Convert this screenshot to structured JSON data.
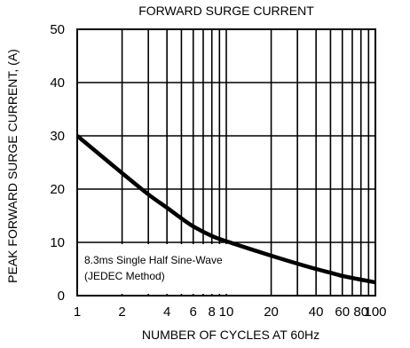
{
  "chart_data": {
    "type": "line",
    "title": "FORWARD SURGE CURRENT",
    "xlabel": "NUMBER OF CYCLES AT 60Hz",
    "ylabel": "PEAK FORWARD SURGE CURRENT, (A)",
    "x_scale": "log",
    "xlim": [
      1,
      100
    ],
    "ylim": [
      0,
      50
    ],
    "grid": true,
    "x_ticks": [
      {
        "value": 1,
        "label": "1"
      },
      {
        "value": 2,
        "label": "2"
      },
      {
        "value": 4,
        "label": "4"
      },
      {
        "value": 6,
        "label": "6"
      },
      {
        "value": 8,
        "label": "8"
      },
      {
        "value": 10,
        "label": "10"
      },
      {
        "value": 20,
        "label": "20"
      },
      {
        "value": 40,
        "label": "40"
      },
      {
        "value": 60,
        "label": "60"
      },
      {
        "value": 80,
        "label": "80"
      },
      {
        "value": 100,
        "label": "100"
      }
    ],
    "x_minor": [
      3,
      5,
      7,
      9,
      30,
      50,
      70,
      90
    ],
    "y_ticks": [
      {
        "value": 0,
        "label": "0"
      },
      {
        "value": 10,
        "label": "10"
      },
      {
        "value": 20,
        "label": "20"
      },
      {
        "value": 30,
        "label": "30"
      },
      {
        "value": 40,
        "label": "40"
      },
      {
        "value": 50,
        "label": "50"
      }
    ],
    "series": [
      {
        "color": "#000000",
        "x": [
          1,
          2,
          3,
          4,
          5,
          6,
          8,
          10,
          20,
          30,
          40,
          50,
          60,
          80,
          100
        ],
        "y": [
          30,
          23,
          19,
          16.5,
          14.5,
          13,
          11.2,
          10.2,
          7.5,
          6,
          5,
          4.3,
          3.7,
          3,
          2.5
        ]
      }
    ],
    "annotation": {
      "lines": [
        "8.3ms Single Half Sine-Wave",
        "(JEDEC Method)"
      ]
    }
  }
}
